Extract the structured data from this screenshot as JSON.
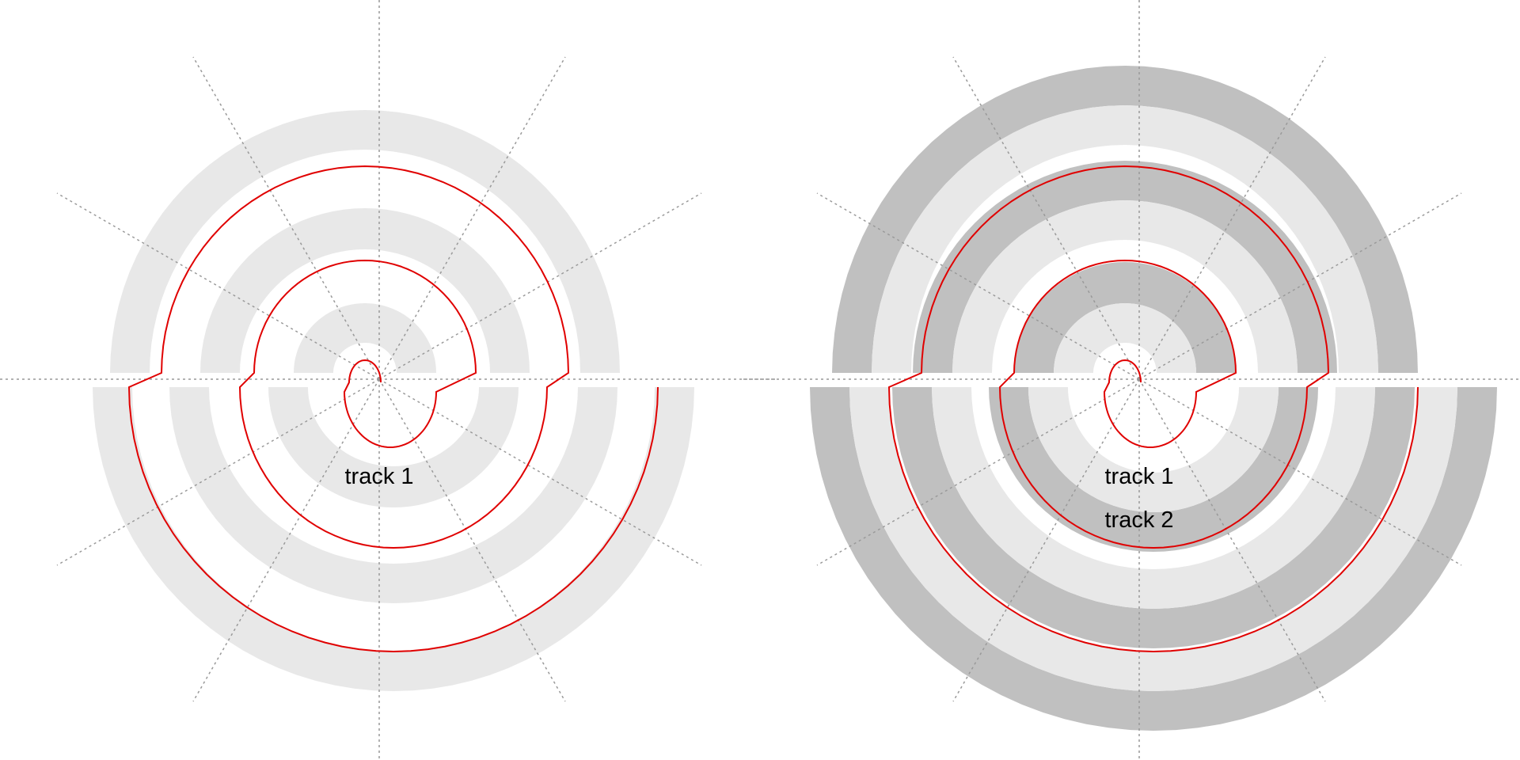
{
  "panels": [
    {
      "id": "left",
      "tracks": [
        {
          "label": "track 1",
          "color": "#e8e8e8"
        }
      ]
    },
    {
      "id": "right",
      "tracks": [
        {
          "label": "track 1",
          "color": "#e8e8e8"
        },
        {
          "label": "track 2",
          "color": "#c0c0c0"
        }
      ]
    }
  ],
  "colors": {
    "background": "#ffffff",
    "spiral_line": "#e00000",
    "guide_lines": "#999999"
  }
}
